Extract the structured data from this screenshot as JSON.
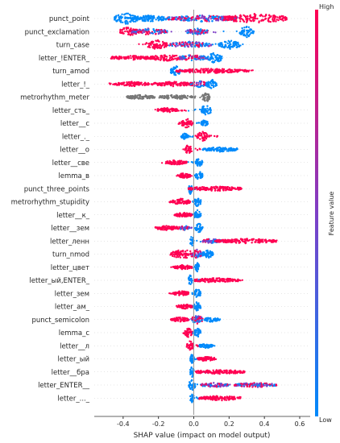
{
  "chart_data": {
    "type": "scatter",
    "subtype": "shap-beeswarm",
    "title": "",
    "xlabel": "SHAP value (impact on model output)",
    "xlim": [
      -0.47,
      0.6
    ],
    "xticks": [
      "-0.4",
      "-0.2",
      "0.0",
      "0.2",
      "0.4",
      "0.6"
    ],
    "xtick_values": [
      -0.4,
      -0.2,
      0.0,
      0.2,
      0.4,
      0.6
    ],
    "colorbar": {
      "label": "Feature value",
      "high": "High",
      "low": "Low",
      "colors": [
        "#008afb",
        "#ff0052"
      ]
    },
    "features": [
      {
        "name": "punct_point",
        "min": -0.42,
        "max": 0.55,
        "blobs": [
          {
            "x": -0.38,
            "w": 0.07,
            "c": "low",
            "h": 7
          },
          {
            "x": -0.25,
            "w": 0.1,
            "c": "low",
            "h": 4
          },
          {
            "x": 0.05,
            "w": 0.2,
            "c": "mixed",
            "h": 4
          },
          {
            "x": 0.35,
            "w": 0.18,
            "c": "high",
            "h": 6
          }
        ]
      },
      {
        "name": "punct_exclamation",
        "min": -0.41,
        "max": 0.34,
        "blobs": [
          {
            "x": -0.37,
            "w": 0.05,
            "c": "high",
            "h": 6
          },
          {
            "x": -0.25,
            "w": 0.1,
            "c": "mixed",
            "h": 4
          },
          {
            "x": 0.02,
            "w": 0.06,
            "c": "mixed",
            "h": 4
          },
          {
            "x": 0.3,
            "w": 0.04,
            "c": "low",
            "h": 7
          }
        ]
      },
      {
        "name": "turn_case",
        "min": -0.33,
        "max": 0.3,
        "blobs": [
          {
            "x": -0.21,
            "w": 0.06,
            "c": "high",
            "h": 6
          },
          {
            "x": -0.02,
            "w": 0.12,
            "c": "mixed",
            "h": 4
          },
          {
            "x": 0.2,
            "w": 0.06,
            "c": "low",
            "h": 6
          }
        ]
      },
      {
        "name": "letter_!ENTER_",
        "min": -0.45,
        "max": 0.16,
        "blobs": [
          {
            "x": -0.35,
            "w": 0.12,
            "c": "high",
            "h": 3
          },
          {
            "x": -0.15,
            "w": 0.1,
            "c": "high",
            "h": 4
          },
          {
            "x": 0.0,
            "w": 0.08,
            "c": "mixed",
            "h": 4
          },
          {
            "x": 0.12,
            "w": 0.04,
            "c": "low",
            "h": 7
          }
        ]
      },
      {
        "name": "turn_amod",
        "min": -0.12,
        "max": 0.37,
        "blobs": [
          {
            "x": -0.1,
            "w": 0.03,
            "c": "low",
            "h": 6
          },
          {
            "x": 0.1,
            "w": 0.2,
            "c": "high",
            "h": 3
          }
        ]
      },
      {
        "name": "letter_!_",
        "min": -0.48,
        "max": 0.13,
        "blobs": [
          {
            "x": -0.35,
            "w": 0.1,
            "c": "high",
            "h": 3
          },
          {
            "x": -0.12,
            "w": 0.12,
            "c": "high",
            "h": 3
          },
          {
            "x": 0.03,
            "w": 0.05,
            "c": "mixed",
            "h": 4
          },
          {
            "x": 0.1,
            "w": 0.03,
            "c": "low",
            "h": 6
          }
        ]
      },
      {
        "name": "metrorhythm_meter",
        "min": -0.38,
        "max": 0.09,
        "blobs": [
          {
            "x": -0.3,
            "w": 0.08,
            "c": "gray",
            "h": 3
          },
          {
            "x": -0.1,
            "w": 0.1,
            "c": "gray",
            "h": 3
          },
          {
            "x": 0.07,
            "w": 0.02,
            "c": "gray",
            "h": 7
          }
        ]
      },
      {
        "name": "letter_сть_",
        "min": -0.22,
        "max": 0.1,
        "blobs": [
          {
            "x": -0.15,
            "w": 0.06,
            "c": "high",
            "h": 3
          },
          {
            "x": 0.07,
            "w": 0.03,
            "c": "low",
            "h": 7
          }
        ]
      },
      {
        "name": "letter__с",
        "min": -0.1,
        "max": 0.08,
        "blobs": [
          {
            "x": -0.04,
            "w": 0.03,
            "c": "high",
            "h": 6
          },
          {
            "x": 0.06,
            "w": 0.02,
            "c": "low",
            "h": 4
          }
        ]
      },
      {
        "name": "letter_._",
        "min": -0.08,
        "max": 0.15,
        "blobs": [
          {
            "x": -0.05,
            "w": 0.02,
            "c": "low",
            "h": 4
          },
          {
            "x": 0.05,
            "w": 0.03,
            "c": "high",
            "h": 7
          }
        ]
      },
      {
        "name": "letter__о",
        "min": -0.06,
        "max": 0.25,
        "blobs": [
          {
            "x": -0.03,
            "w": 0.02,
            "c": "high",
            "h": 6
          },
          {
            "x": 0.15,
            "w": 0.1,
            "c": "low",
            "h": 3
          }
        ]
      },
      {
        "name": "letter__све",
        "min": -0.18,
        "max": 0.05,
        "blobs": [
          {
            "x": -0.1,
            "w": 0.06,
            "c": "high",
            "h": 3
          },
          {
            "x": 0.03,
            "w": 0.02,
            "c": "low",
            "h": 6
          }
        ]
      },
      {
        "name": "lemma_в",
        "min": -0.1,
        "max": 0.05,
        "blobs": [
          {
            "x": -0.05,
            "w": 0.03,
            "c": "high",
            "h": 4
          },
          {
            "x": 0.03,
            "w": 0.02,
            "c": "low",
            "h": 6
          }
        ]
      },
      {
        "name": "punct_three_points",
        "min": -0.04,
        "max": 0.29,
        "blobs": [
          {
            "x": -0.02,
            "w": 0.01,
            "c": "low",
            "h": 7
          },
          {
            "x": 0.12,
            "w": 0.15,
            "c": "high",
            "h": 3
          }
        ]
      },
      {
        "name": "metrorhythm_stupidity",
        "min": -0.14,
        "max": 0.04,
        "blobs": [
          {
            "x": -0.07,
            "w": 0.05,
            "c": "high",
            "h": 4
          },
          {
            "x": 0.02,
            "w": 0.02,
            "c": "low",
            "h": 6
          }
        ]
      },
      {
        "name": "letter__к_",
        "min": -0.12,
        "max": 0.04,
        "blobs": [
          {
            "x": -0.06,
            "w": 0.05,
            "c": "high",
            "h": 3
          },
          {
            "x": 0.02,
            "w": 0.02,
            "c": "low",
            "h": 6
          }
        ]
      },
      {
        "name": "letter__зем",
        "min": -0.24,
        "max": 0.05,
        "blobs": [
          {
            "x": -0.15,
            "w": 0.07,
            "c": "high",
            "h": 3
          },
          {
            "x": -0.05,
            "w": 0.03,
            "c": "mixed",
            "h": 3
          },
          {
            "x": 0.03,
            "w": 0.02,
            "c": "low",
            "h": 6
          }
        ]
      },
      {
        "name": "letter_ленн",
        "min": -0.02,
        "max": 0.48,
        "blobs": [
          {
            "x": -0.01,
            "w": 0.01,
            "c": "low",
            "h": 7
          },
          {
            "x": 0.1,
            "w": 0.05,
            "c": "mixed",
            "h": 3
          },
          {
            "x": 0.3,
            "w": 0.17,
            "c": "high",
            "h": 3
          }
        ]
      },
      {
        "name": "turn_nmod",
        "min": -0.14,
        "max": 0.11,
        "blobs": [
          {
            "x": -0.06,
            "w": 0.07,
            "c": "high",
            "h": 6
          },
          {
            "x": 0.02,
            "w": 0.03,
            "c": "mixed",
            "h": 6
          },
          {
            "x": 0.08,
            "w": 0.03,
            "c": "low",
            "h": 5
          }
        ]
      },
      {
        "name": "letter_цвет",
        "min": -0.13,
        "max": 0.03,
        "blobs": [
          {
            "x": -0.06,
            "w": 0.05,
            "c": "high",
            "h": 3
          },
          {
            "x": 0.02,
            "w": 0.01,
            "c": "low",
            "h": 6
          }
        ]
      },
      {
        "name": "letter_ый,ENTER_",
        "min": -0.03,
        "max": 0.28,
        "blobs": [
          {
            "x": -0.02,
            "w": 0.01,
            "c": "low",
            "h": 7
          },
          {
            "x": 0.13,
            "w": 0.13,
            "c": "high",
            "h": 3
          }
        ]
      },
      {
        "name": "letter_зем",
        "min": -0.14,
        "max": 0.04,
        "blobs": [
          {
            "x": -0.07,
            "w": 0.05,
            "c": "high",
            "h": 3
          },
          {
            "x": 0.02,
            "w": 0.02,
            "c": "low",
            "h": 6
          }
        ]
      },
      {
        "name": "letter_ам_",
        "min": -0.1,
        "max": 0.04,
        "blobs": [
          {
            "x": -0.05,
            "w": 0.04,
            "c": "high",
            "h": 3
          },
          {
            "x": 0.02,
            "w": 0.02,
            "c": "low",
            "h": 6
          }
        ]
      },
      {
        "name": "punct_semicolon",
        "min": -0.14,
        "max": 0.15,
        "blobs": [
          {
            "x": -0.08,
            "w": 0.05,
            "c": "high",
            "h": 3
          },
          {
            "x": 0.02,
            "w": 0.03,
            "c": "mixed",
            "h": 6
          },
          {
            "x": 0.1,
            "w": 0.04,
            "c": "low",
            "h": 3
          }
        ]
      },
      {
        "name": "lemma_с",
        "min": -0.06,
        "max": 0.04,
        "blobs": [
          {
            "x": -0.03,
            "w": 0.02,
            "c": "high",
            "h": 6
          },
          {
            "x": 0.02,
            "w": 0.02,
            "c": "low",
            "h": 6
          }
        ]
      },
      {
        "name": "letter__л",
        "min": -0.05,
        "max": 0.12,
        "blobs": [
          {
            "x": -0.02,
            "w": 0.02,
            "c": "high",
            "h": 6
          },
          {
            "x": 0.07,
            "w": 0.04,
            "c": "low",
            "h": 3
          }
        ]
      },
      {
        "name": "letter_ый",
        "min": -0.02,
        "max": 0.13,
        "blobs": [
          {
            "x": -0.01,
            "w": 0.01,
            "c": "low",
            "h": 7
          },
          {
            "x": 0.07,
            "w": 0.05,
            "c": "high",
            "h": 3
          }
        ]
      },
      {
        "name": "letter__бра",
        "min": -0.02,
        "max": 0.3,
        "blobs": [
          {
            "x": -0.01,
            "w": 0.01,
            "c": "low",
            "h": 7
          },
          {
            "x": 0.15,
            "w": 0.14,
            "c": "high",
            "h": 3
          }
        ]
      },
      {
        "name": "letter_ENTER__",
        "min": -0.03,
        "max": 0.47,
        "blobs": [
          {
            "x": -0.01,
            "w": 0.02,
            "c": "low",
            "h": 7
          },
          {
            "x": 0.12,
            "w": 0.08,
            "c": "mixed",
            "h": 3
          },
          {
            "x": 0.35,
            "w": 0.12,
            "c": "mixed",
            "h": 3
          }
        ]
      },
      {
        "name": "letter_..._",
        "min": -0.02,
        "max": 0.27,
        "blobs": [
          {
            "x": -0.01,
            "w": 0.01,
            "c": "low",
            "h": 7
          },
          {
            "x": 0.15,
            "w": 0.12,
            "c": "high",
            "h": 3
          }
        ]
      }
    ]
  }
}
